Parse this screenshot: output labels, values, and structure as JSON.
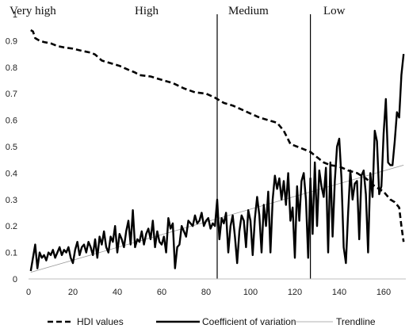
{
  "chart_data": {
    "type": "line",
    "title": "",
    "xlabel": "",
    "ylabel": "",
    "xlim": [
      0,
      170
    ],
    "ylim": [
      0,
      1
    ],
    "x_ticks": [
      "0",
      "20",
      "40",
      "60",
      "80",
      "100",
      "120",
      "140",
      "160"
    ],
    "y_ticks": [
      "0",
      "0.1",
      "0.2",
      "0.3",
      "0.4",
      "0.5",
      "0.6",
      "0.7",
      "0.8",
      "0.9",
      "1"
    ],
    "grid": false,
    "legend_position": "bottom",
    "bands": [
      {
        "label": "Very high",
        "x_start": 0,
        "x_end": 0
      },
      {
        "label": "High",
        "x_start": 0,
        "x_end": 85
      },
      {
        "label": "Medium",
        "x_start": 85,
        "x_end": 127
      },
      {
        "label": "Low",
        "x_start": 127,
        "x_end": 170
      }
    ],
    "dividers": [
      85,
      127
    ],
    "series": [
      {
        "name": "HDI values",
        "style": "dashed",
        "color": "#000000",
        "points": [
          [
            1,
            0.94
          ],
          [
            2,
            0.935
          ],
          [
            3,
            0.91
          ],
          [
            5,
            0.9
          ],
          [
            7,
            0.895
          ],
          [
            10,
            0.89
          ],
          [
            13,
            0.88
          ],
          [
            16,
            0.875
          ],
          [
            20,
            0.87
          ],
          [
            24,
            0.862
          ],
          [
            28,
            0.855
          ],
          [
            30,
            0.848
          ],
          [
            33,
            0.825
          ],
          [
            37,
            0.815
          ],
          [
            41,
            0.805
          ],
          [
            45,
            0.79
          ],
          [
            48,
            0.78
          ],
          [
            50,
            0.77
          ],
          [
            55,
            0.765
          ],
          [
            60,
            0.752
          ],
          [
            65,
            0.74
          ],
          [
            70,
            0.72
          ],
          [
            75,
            0.705
          ],
          [
            80,
            0.7
          ],
          [
            84,
            0.685
          ],
          [
            88,
            0.665
          ],
          [
            92,
            0.655
          ],
          [
            96,
            0.64
          ],
          [
            100,
            0.625
          ],
          [
            104,
            0.61
          ],
          [
            108,
            0.6
          ],
          [
            112,
            0.59
          ],
          [
            115,
            0.56
          ],
          [
            118,
            0.51
          ],
          [
            121,
            0.5
          ],
          [
            124,
            0.49
          ],
          [
            127,
            0.48
          ],
          [
            130,
            0.46
          ],
          [
            133,
            0.44
          ],
          [
            136,
            0.43
          ],
          [
            140,
            0.425
          ],
          [
            144,
            0.41
          ],
          [
            148,
            0.4
          ],
          [
            152,
            0.38
          ],
          [
            156,
            0.35
          ],
          [
            160,
            0.33
          ],
          [
            163,
            0.3
          ],
          [
            165,
            0.29
          ],
          [
            167,
            0.27
          ],
          [
            168,
            0.2
          ],
          [
            169,
            0.14
          ]
        ]
      },
      {
        "name": "Coefficient of variation",
        "style": "solid",
        "color": "#000000",
        "points": [
          [
            1,
            0.03
          ],
          [
            2,
            0.08
          ],
          [
            3,
            0.13
          ],
          [
            4,
            0.04
          ],
          [
            5,
            0.1
          ],
          [
            6,
            0.08
          ],
          [
            7,
            0.09
          ],
          [
            8,
            0.07
          ],
          [
            9,
            0.1
          ],
          [
            10,
            0.09
          ],
          [
            11,
            0.11
          ],
          [
            12,
            0.08
          ],
          [
            13,
            0.1
          ],
          [
            14,
            0.12
          ],
          [
            15,
            0.09
          ],
          [
            16,
            0.11
          ],
          [
            17,
            0.1
          ],
          [
            18,
            0.12
          ],
          [
            19,
            0.08
          ],
          [
            20,
            0.06
          ],
          [
            21,
            0.11
          ],
          [
            22,
            0.14
          ],
          [
            23,
            0.09
          ],
          [
            24,
            0.12
          ],
          [
            25,
            0.13
          ],
          [
            26,
            0.1
          ],
          [
            27,
            0.14
          ],
          [
            28,
            0.12
          ],
          [
            29,
            0.09
          ],
          [
            30,
            0.15
          ],
          [
            31,
            0.08
          ],
          [
            32,
            0.16
          ],
          [
            33,
            0.13
          ],
          [
            34,
            0.18
          ],
          [
            35,
            0.12
          ],
          [
            36,
            0.1
          ],
          [
            37,
            0.16
          ],
          [
            38,
            0.14
          ],
          [
            39,
            0.2
          ],
          [
            40,
            0.1
          ],
          [
            41,
            0.17
          ],
          [
            42,
            0.15
          ],
          [
            43,
            0.12
          ],
          [
            44,
            0.18
          ],
          [
            45,
            0.22
          ],
          [
            46,
            0.13
          ],
          [
            47,
            0.26
          ],
          [
            48,
            0.12
          ],
          [
            49,
            0.15
          ],
          [
            50,
            0.14
          ],
          [
            51,
            0.18
          ],
          [
            52,
            0.13
          ],
          [
            53,
            0.17
          ],
          [
            54,
            0.19
          ],
          [
            55,
            0.15
          ],
          [
            56,
            0.22
          ],
          [
            57,
            0.12
          ],
          [
            58,
            0.18
          ],
          [
            59,
            0.14
          ],
          [
            60,
            0.13
          ],
          [
            61,
            0.16
          ],
          [
            62,
            0.1
          ],
          [
            63,
            0.23
          ],
          [
            64,
            0.19
          ],
          [
            65,
            0.21
          ],
          [
            66,
            0.04
          ],
          [
            67,
            0.12
          ],
          [
            68,
            0.13
          ],
          [
            69,
            0.2
          ],
          [
            70,
            0.18
          ],
          [
            71,
            0.16
          ],
          [
            72,
            0.22
          ],
          [
            73,
            0.21
          ],
          [
            74,
            0.2
          ],
          [
            75,
            0.24
          ],
          [
            76,
            0.21
          ],
          [
            77,
            0.22
          ],
          [
            78,
            0.25
          ],
          [
            79,
            0.2
          ],
          [
            80,
            0.22
          ],
          [
            81,
            0.23
          ],
          [
            82,
            0.19
          ],
          [
            83,
            0.21
          ],
          [
            84,
            0.2
          ],
          [
            85,
            0.3
          ],
          [
            86,
            0.15
          ],
          [
            87,
            0.23
          ],
          [
            88,
            0.21
          ],
          [
            89,
            0.25
          ],
          [
            90,
            0.1
          ],
          [
            91,
            0.2
          ],
          [
            92,
            0.24
          ],
          [
            93,
            0.16
          ],
          [
            94,
            0.06
          ],
          [
            95,
            0.18
          ],
          [
            96,
            0.24
          ],
          [
            97,
            0.22
          ],
          [
            98,
            0.12
          ],
          [
            99,
            0.26
          ],
          [
            100,
            0.22
          ],
          [
            101,
            0.09
          ],
          [
            102,
            0.23
          ],
          [
            103,
            0.31
          ],
          [
            104,
            0.24
          ],
          [
            105,
            0.1
          ],
          [
            106,
            0.28
          ],
          [
            107,
            0.2
          ],
          [
            108,
            0.33
          ],
          [
            109,
            0.1
          ],
          [
            110,
            0.3
          ],
          [
            111,
            0.39
          ],
          [
            112,
            0.34
          ],
          [
            113,
            0.38
          ],
          [
            114,
            0.3
          ],
          [
            115,
            0.37
          ],
          [
            116,
            0.28
          ],
          [
            117,
            0.4
          ],
          [
            118,
            0.22
          ],
          [
            119,
            0.27
          ],
          [
            120,
            0.08
          ],
          [
            121,
            0.35
          ],
          [
            122,
            0.22
          ],
          [
            123,
            0.37
          ],
          [
            124,
            0.4
          ],
          [
            125,
            0.3
          ],
          [
            126,
            0.08
          ],
          [
            127,
            0.38
          ],
          [
            128,
            0.17
          ],
          [
            129,
            0.44
          ],
          [
            130,
            0.2
          ],
          [
            131,
            0.41
          ],
          [
            132,
            0.35
          ],
          [
            133,
            0.31
          ],
          [
            134,
            0.42
          ],
          [
            135,
            0.1
          ],
          [
            136,
            0.44
          ],
          [
            137,
            0.16
          ],
          [
            138,
            0.37
          ],
          [
            139,
            0.5
          ],
          [
            140,
            0.53
          ],
          [
            141,
            0.38
          ],
          [
            142,
            0.12
          ],
          [
            143,
            0.06
          ],
          [
            144,
            0.25
          ],
          [
            145,
            0.41
          ],
          [
            146,
            0.3
          ],
          [
            147,
            0.36
          ],
          [
            148,
            0.37
          ],
          [
            149,
            0.15
          ],
          [
            150,
            0.39
          ],
          [
            151,
            0.41
          ],
          [
            152,
            0.32
          ],
          [
            153,
            0.1
          ],
          [
            154,
            0.4
          ],
          [
            155,
            0.31
          ],
          [
            156,
            0.56
          ],
          [
            157,
            0.52
          ],
          [
            158,
            0.32
          ],
          [
            159,
            0.35
          ],
          [
            160,
            0.55
          ],
          [
            161,
            0.68
          ],
          [
            162,
            0.44
          ],
          [
            163,
            0.43
          ],
          [
            164,
            0.43
          ],
          [
            165,
            0.52
          ],
          [
            166,
            0.63
          ],
          [
            167,
            0.61
          ],
          [
            168,
            0.77
          ],
          [
            169,
            0.85
          ]
        ]
      },
      {
        "name": "Trendline",
        "style": "thin",
        "color": "#999999",
        "points": [
          [
            1,
            0.025
          ],
          [
            169,
            0.43
          ]
        ]
      }
    ]
  }
}
